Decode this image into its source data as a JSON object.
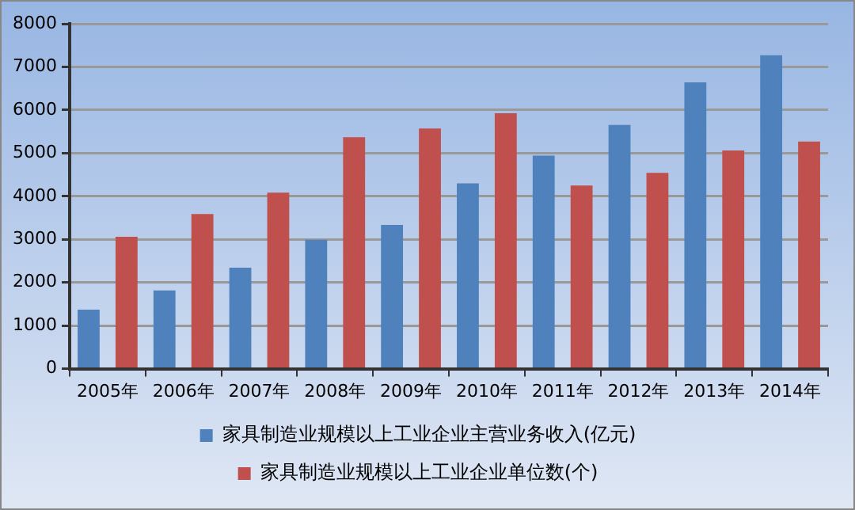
{
  "chart_data": {
    "type": "bar",
    "categories": [
      "2005年",
      "2006年",
      "2007年",
      "2008年",
      "2009年",
      "2010年",
      "2011年",
      "2012年",
      "2013年",
      "2014年"
    ],
    "series": [
      {
        "name": "家具制造业规模以上工业企业主营业务收入(亿元)",
        "color": "#4f81bd",
        "values": [
          1370,
          1815,
          2345,
          2990,
          3335,
          4300,
          4940,
          5655,
          6640,
          7270
        ]
      },
      {
        "name": "家具制造业规模以上工业企业单位数(个)",
        "color": "#c0504d",
        "values": [
          3060,
          3590,
          4085,
          5370,
          5570,
          5925,
          4250,
          4545,
          5060,
          5270
        ]
      }
    ],
    "ylim": [
      0,
      8000
    ],
    "yticks": [
      0,
      1000,
      2000,
      3000,
      4000,
      5000,
      6000,
      7000,
      8000
    ],
    "grid": "y",
    "legend": "bottom"
  }
}
